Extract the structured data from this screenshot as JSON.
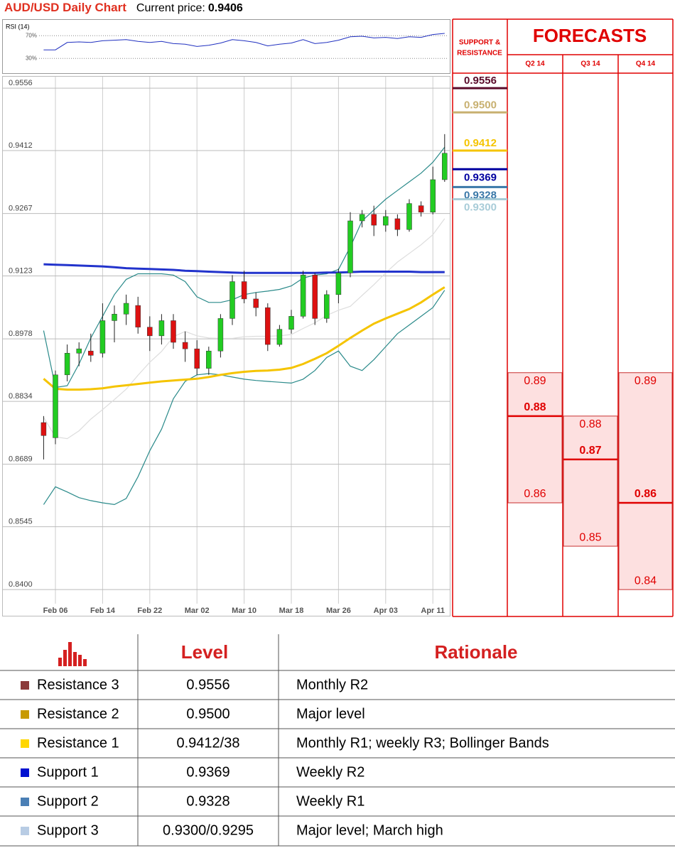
{
  "chart_data": [
    {
      "type": "candlestick",
      "title": "AUD/USD Daily Chart",
      "price_label": "Current price:",
      "current_price": 0.9406,
      "categories": [
        null,
        null,
        "Feb 06",
        null,
        null,
        null,
        "Feb 14",
        null,
        null,
        null,
        "Feb 22",
        null,
        null,
        null,
        "Mar 02",
        null,
        null,
        null,
        "Mar 10",
        null,
        null,
        null,
        "Mar 18",
        null,
        null,
        null,
        "Mar 26",
        null,
        null,
        null,
        "Apr 03",
        null,
        null,
        null,
        "Apr 11",
        null
      ],
      "open": [
        null,
        0.8785,
        0.875,
        0.8895,
        0.8945,
        0.895,
        0.8945,
        0.902,
        0.9035,
        0.9055,
        0.9005,
        0.8985,
        0.902,
        0.897,
        0.8955,
        0.891,
        0.895,
        0.9025,
        0.911,
        0.907,
        0.905,
        0.8965,
        0.9,
        0.903,
        0.9125,
        0.9025,
        0.908,
        0.913,
        0.925,
        0.9265,
        0.924,
        0.9255,
        0.923,
        0.9285,
        0.927,
        0.9345
      ],
      "high": [
        null,
        0.88,
        0.8905,
        0.8965,
        0.897,
        0.899,
        0.906,
        0.9055,
        0.908,
        0.9075,
        0.903,
        0.9035,
        0.9035,
        0.8995,
        0.8975,
        0.896,
        0.9035,
        0.9125,
        0.9135,
        0.9085,
        0.906,
        0.901,
        0.9045,
        0.9135,
        0.913,
        0.909,
        0.914,
        0.927,
        0.9275,
        0.9285,
        0.9275,
        0.9265,
        0.93,
        0.9295,
        0.9375,
        0.945
      ],
      "low": [
        null,
        0.87,
        0.8735,
        0.888,
        0.8915,
        0.8925,
        0.8935,
        0.897,
        0.901,
        0.899,
        0.895,
        0.8965,
        0.8955,
        0.8925,
        0.8895,
        0.8895,
        0.8935,
        0.901,
        0.906,
        0.903,
        0.895,
        0.896,
        0.899,
        0.9025,
        0.901,
        0.9015,
        0.906,
        0.912,
        0.9235,
        0.9215,
        0.9225,
        0.9215,
        0.9225,
        0.926,
        0.9265,
        0.934
      ],
      "close": [
        null,
        0.8755,
        0.8895,
        0.8945,
        0.8955,
        0.894,
        0.902,
        0.9035,
        0.906,
        0.9005,
        0.8985,
        0.902,
        0.897,
        0.8955,
        0.891,
        0.895,
        0.9025,
        0.911,
        0.907,
        0.905,
        0.8965,
        0.9,
        0.903,
        0.9125,
        0.9025,
        0.908,
        0.913,
        0.925,
        0.9265,
        0.924,
        0.926,
        0.923,
        0.929,
        0.927,
        0.9345,
        0.9406
      ],
      "up_color": "#22cc22",
      "down_color": "#dd1111",
      "series": [
        {
          "color": "#dddddd",
          "values": [
            null,
            0.8797,
            0.8752,
            0.8748,
            0.8766,
            0.8793,
            0.8815,
            0.8838,
            0.8862,
            0.8894,
            0.8924,
            0.8949,
            0.8983,
            0.8995,
            0.8985,
            0.898,
            0.8979,
            0.8979,
            0.8983,
            0.8984,
            0.8984,
            0.8985,
            0.8988,
            0.9002,
            0.9015,
            0.9032,
            0.9044,
            0.9053,
            0.9078,
            0.9103,
            0.913,
            0.9155,
            0.9175,
            0.9195,
            0.9218,
            0.9255
          ]
        },
        {
          "color": "#2a8a8a",
          "values": [
            null,
            0.8997,
            0.8866,
            0.887,
            0.892,
            0.898,
            0.903,
            0.908,
            0.9115,
            0.9128,
            0.9128,
            0.9128,
            0.9125,
            0.911,
            0.9075,
            0.9062,
            0.9062,
            0.9068,
            0.908,
            0.9085,
            0.9088,
            0.9092,
            0.91,
            0.9118,
            0.9125,
            0.9128,
            0.9138,
            0.919,
            0.925,
            0.9275,
            0.93,
            0.932,
            0.934,
            0.936,
            0.9385,
            0.942
          ]
        },
        {
          "color": "#2a8a8a",
          "values": [
            null,
            0.8596,
            0.8637,
            0.8625,
            0.8612,
            0.8605,
            0.86,
            0.8596,
            0.861,
            0.866,
            0.872,
            0.877,
            0.884,
            0.888,
            0.8895,
            0.8898,
            0.8895,
            0.889,
            0.8885,
            0.8882,
            0.888,
            0.8878,
            0.8876,
            0.8885,
            0.8905,
            0.8935,
            0.895,
            0.8915,
            0.8905,
            0.893,
            0.896,
            0.899,
            0.901,
            0.903,
            0.905,
            0.909
          ]
        },
        {
          "color": "#f5c400",
          "values": [
            null,
            0.8886,
            0.8863,
            0.8861,
            0.8861,
            0.8862,
            0.8864,
            0.8868,
            0.8871,
            0.8874,
            0.8877,
            0.888,
            0.8882,
            0.8884,
            0.8886,
            0.889,
            0.8895,
            0.8899,
            0.8902,
            0.8904,
            0.8905,
            0.8907,
            0.8911,
            0.892,
            0.8932,
            0.8945,
            0.8962,
            0.898,
            0.8997,
            0.9013,
            0.9025,
            0.9036,
            0.9047,
            0.9062,
            0.908,
            0.9097
          ]
        },
        {
          "color": "#2233cc",
          "values": [
            null,
            0.915,
            0.9149,
            0.9148,
            0.9147,
            0.9146,
            0.9145,
            0.9143,
            0.9141,
            0.914,
            0.9139,
            0.9138,
            0.9137,
            0.9135,
            0.9134,
            0.9133,
            0.9132,
            0.9131,
            0.913,
            0.913,
            0.913,
            0.913,
            0.913,
            0.913,
            0.913,
            0.9131,
            0.9131,
            0.9132,
            0.9133,
            0.9133,
            0.9133,
            0.9133,
            0.9133,
            0.9132,
            0.9132,
            0.9132
          ]
        }
      ],
      "ylim": [
        0.8338,
        0.9584
      ],
      "yticks": [
        0.9556,
        0.9412,
        0.9267,
        0.9123,
        0.8978,
        0.8834,
        0.8689,
        0.8545,
        {
          "value": 0.84,
          "label": "0.8400"
        }
      ],
      "grid": true
    },
    {
      "type": "line",
      "title": "RSI (14)",
      "color": "#2030c0",
      "values": [
        null,
        45,
        45,
        58,
        59,
        58,
        61,
        62,
        63,
        60,
        58,
        60,
        56,
        55,
        51,
        53,
        57,
        63,
        61,
        58,
        52,
        55,
        57,
        63,
        56,
        58,
        62,
        68,
        69,
        66,
        67,
        65,
        68,
        67,
        72,
        74
      ],
      "ylim": [
        4,
        99
      ],
      "yticks": [
        {
          "value": 70,
          "label": "70%"
        },
        {
          "value": 30,
          "label": "30%"
        }
      ]
    },
    {
      "type": "levels",
      "title": [
        "SUPPORT &",
        "RESISTANCE"
      ],
      "values": [
        0.9556,
        0.95,
        0.9412,
        0.9369,
        0.9328,
        0.93
      ],
      "value_labels": [
        "0.9556",
        "0.9500",
        "0.9412",
        "0.9369",
        "0.9328",
        "0.9300"
      ],
      "colors": [
        "#5a0a2a",
        "#c8b070",
        "#f5c400",
        "#0000a0",
        "#3a78a8",
        "#a8ccd8"
      ]
    },
    {
      "type": "range",
      "title": "FORECASTS",
      "color": "#e00000",
      "categories": [
        "Q2 14",
        "Q3 14",
        "Q4 14"
      ],
      "high": [
        0.89,
        0.88,
        0.89
      ],
      "mid": [
        0.88,
        0.87,
        0.86
      ],
      "low": [
        0.86,
        0.85,
        0.84
      ]
    }
  ],
  "table": {
    "header": [
      "Level",
      "Rationale"
    ],
    "rows": [
      [
        "Resistance 3",
        "0.9556",
        "Monthly R2"
      ],
      [
        "Resistance 2",
        "0.9500",
        "Major level"
      ],
      [
        "Resistance 1",
        "0.9412/38",
        "Monthly R1; weekly R3; Bollinger Bands"
      ],
      [
        "Support 1",
        "0.9369",
        "Weekly R2"
      ],
      [
        "Support 2",
        "0.9328",
        "Weekly R1"
      ],
      [
        "Support 3",
        "0.9300/0.9295",
        "Major level; March high"
      ]
    ],
    "row_colors": [
      "#8b3a3a",
      "#c89a00",
      "#ffd700",
      "#0010d0",
      "#4a7fb5",
      "#b8cce4"
    ]
  }
}
